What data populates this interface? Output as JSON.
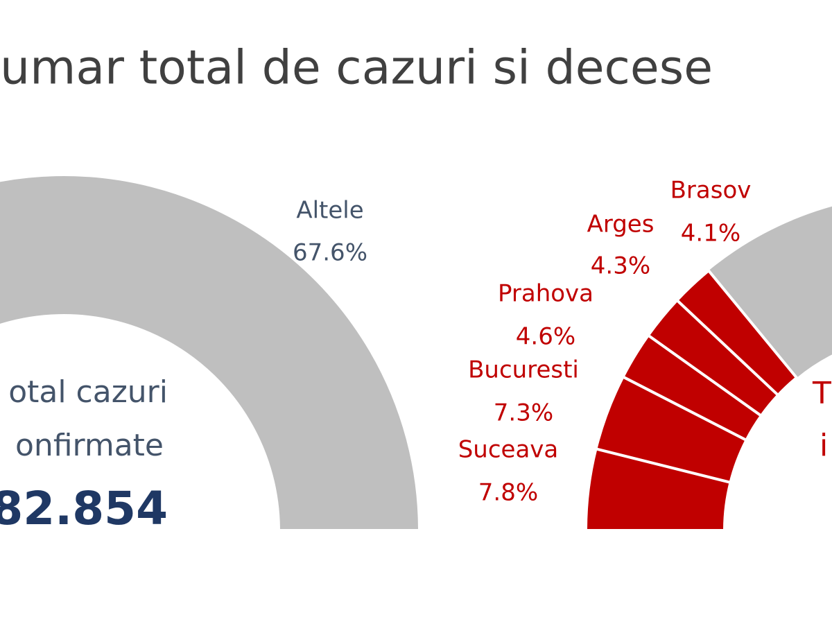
{
  "title": "umar total de cazuri si decese",
  "chart_data": [
    {
      "type": "pie",
      "categories": [
        "Altele"
      ],
      "values": [
        67.6
      ],
      "value_labels": [
        "67.6%"
      ],
      "color": "#bfbfbf",
      "label_color": "#44546a",
      "annotations": [
        "otal cazuri",
        "onfirmate",
        "82.854"
      ]
    },
    {
      "type": "pie",
      "categories": [
        "Suceava",
        "Bucuresti",
        "Prahova",
        "Arges",
        "Brasov"
      ],
      "values": [
        7.8,
        7.3,
        4.6,
        4.3,
        4.1
      ],
      "value_labels": [
        "7.8%",
        "7.3%",
        "4.6%",
        "4.3%",
        "4.1%"
      ],
      "color": "#c00000",
      "label_color": "#c00000",
      "annotations": [
        "T",
        "i"
      ]
    }
  ]
}
